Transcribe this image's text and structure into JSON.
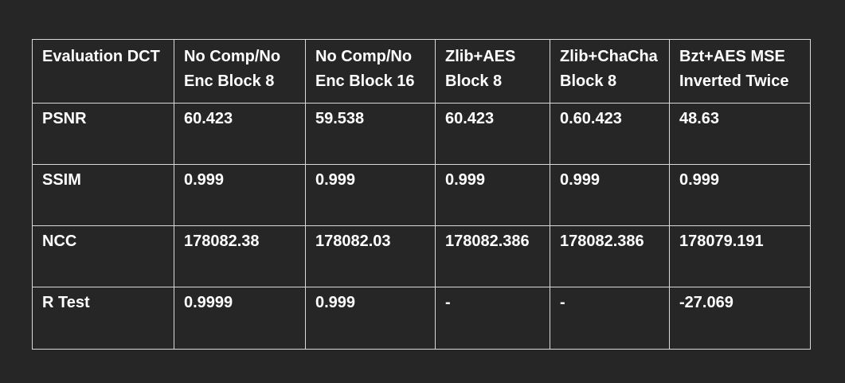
{
  "table": {
    "headers": [
      "Evaluation DCT",
      "No Comp/No Enc Block 8",
      "No Comp/No Enc Block 16",
      "Zlib+AES Block 8",
      "Zlib+ChaCha Block 8",
      "Bzt+AES MSE Inverted Twice"
    ],
    "rows": [
      [
        "PSNR",
        "60.423",
        "59.538",
        "60.423",
        "0.60.423",
        "48.63"
      ],
      [
        "SSIM",
        "0.999",
        "0.999",
        "0.999",
        "0.999",
        "0.999"
      ],
      [
        "NCC",
        "178082.38",
        "178082.03",
        "178082.386",
        "178082.386",
        "178079.191"
      ],
      [
        "R Test",
        "0.9999",
        "0.999",
        "-",
        "-",
        "-27.069"
      ]
    ]
  }
}
